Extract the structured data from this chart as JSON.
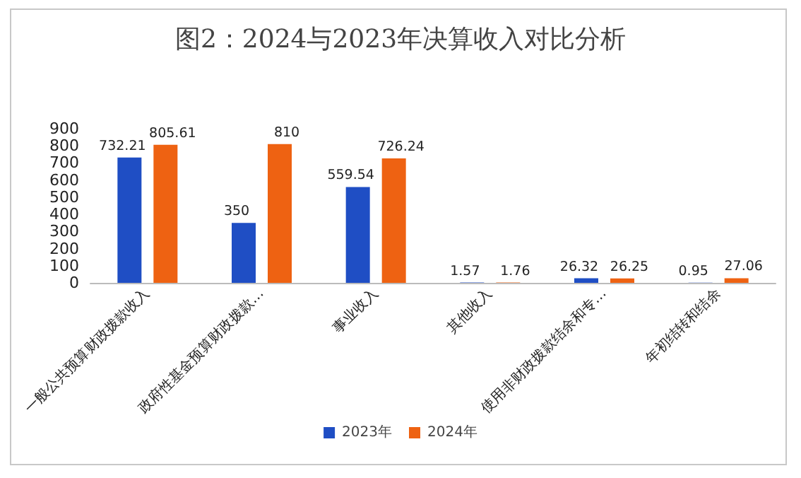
{
  "chart_data": {
    "type": "bar",
    "title": "图2：2024与2023年决算收入对比分析",
    "categories": [
      "一般公共预算财政拨款收入",
      "政府性基金预算财政拨款…",
      "事业收入",
      "其他收入",
      "使用非财政拨款结余和专…",
      "年初结转和结余"
    ],
    "series": [
      {
        "name": "2023年",
        "color": "#1f4ec4",
        "values": [
          732.21,
          350,
          559.54,
          1.57,
          26.32,
          0.95
        ]
      },
      {
        "name": "2024年",
        "color": "#ee6212",
        "values": [
          805.61,
          810,
          726.24,
          1.76,
          26.25,
          27.06
        ]
      }
    ],
    "ylim": [
      0,
      900
    ],
    "yticks": [
      0,
      100,
      200,
      300,
      400,
      500,
      600,
      700,
      800,
      900
    ],
    "grid": false,
    "legend": "bottom",
    "data_labels": true
  }
}
